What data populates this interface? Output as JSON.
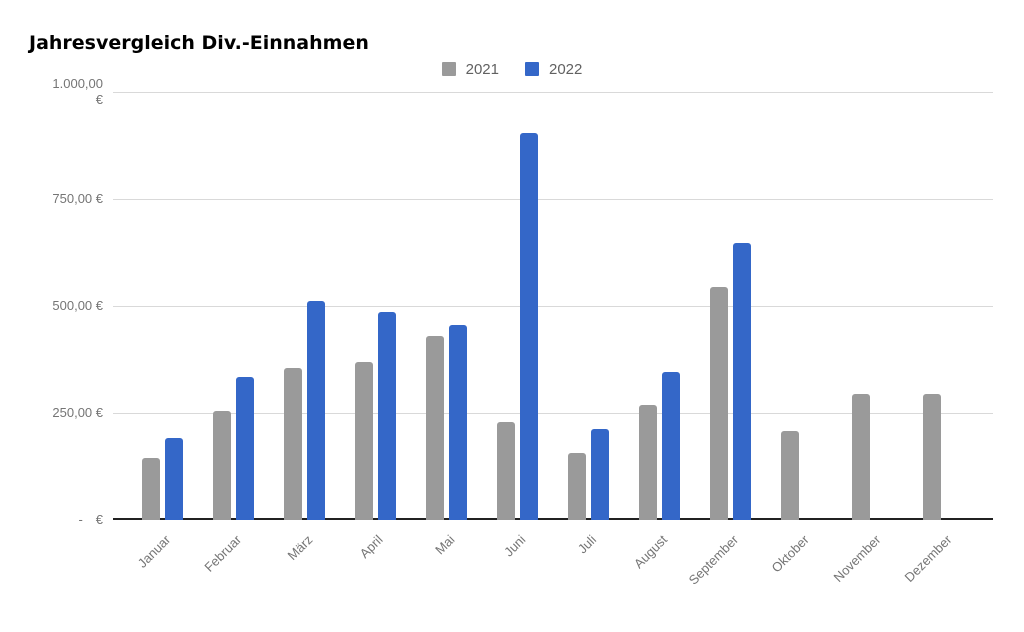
{
  "title": "Jahresvergleich Div.-Einnahmen",
  "chart_data": {
    "type": "bar",
    "title": "Jahresvergleich Div.-Einnahmen",
    "categories": [
      "Januar",
      "Februar",
      "März",
      "April",
      "Mai",
      "Juni",
      "Juli",
      "August",
      "September",
      "Oktober",
      "November",
      "Dezember"
    ],
    "series": [
      {
        "name": "2021",
        "color": "#9a9a9a",
        "values": [
          144,
          254,
          355,
          369,
          430,
          228,
          156,
          269,
          545,
          209,
          295,
          295
        ]
      },
      {
        "name": "2022",
        "color": "#3467c8",
        "values": [
          192,
          334,
          512,
          485,
          456,
          905,
          213,
          346,
          647,
          0,
          0,
          0
        ]
      }
    ],
    "xlabel": "",
    "ylabel": "",
    "ylim": [
      0,
      1000
    ],
    "y_ticks": [
      {
        "value": 1000,
        "label": "1.000,00 €",
        "display": "1.000,00\n€"
      },
      {
        "value": 750,
        "label": "750,00 €",
        "display": "750,00 €"
      },
      {
        "value": 500,
        "label": "500,00 €",
        "display": "500,00 €"
      },
      {
        "value": 250,
        "label": "250,00 €",
        "display": "250,00 €"
      },
      {
        "value": 0,
        "label": "- €",
        "display": "- €"
      }
    ],
    "grid": true,
    "legend_position": "top-center",
    "colors": {
      "grid_line": "#d9d9d9",
      "axis_line": "#212121",
      "tick_text": "#757575",
      "legend_text": "#616161",
      "title_text": "#000000",
      "background": "#ffffff"
    }
  }
}
